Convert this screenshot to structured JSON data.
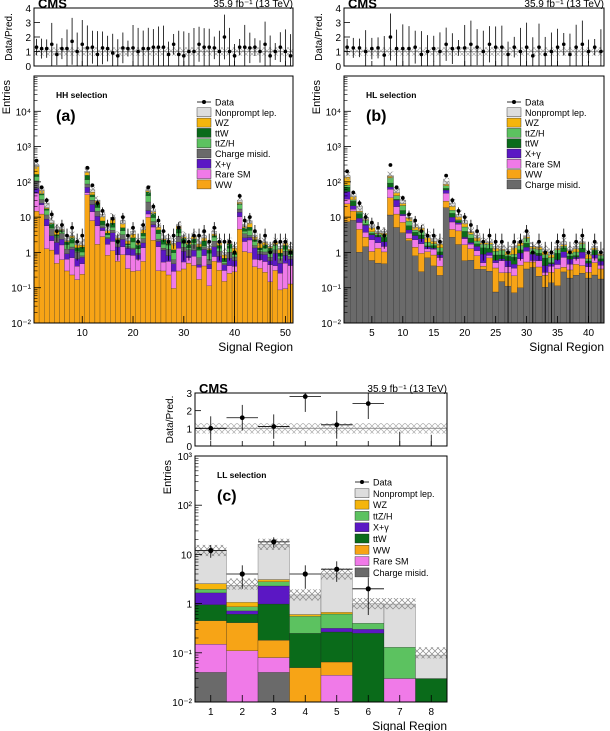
{
  "chart_data": [
    {
      "type": "bar",
      "stacked": true,
      "log_y": true,
      "panel_label": "(a)",
      "selection": "HH selection",
      "experiment": "CMS",
      "lumi_text": "35.9 fb⁻¹ (13 TeV)",
      "xlabel": "Signal Region",
      "ylabel": "Entries",
      "ratio_ylabel": "Data/Pred.",
      "ylim": [
        0.01,
        100000
      ],
      "ratio_ylim": [
        0,
        4
      ],
      "xticks": [
        "10",
        "20",
        "30",
        "40",
        "50"
      ],
      "yticks": [
        "10⁻²",
        "10⁻¹",
        "1",
        "10",
        "10²",
        "10³",
        "10⁴"
      ],
      "ratio_yticks": [
        "0",
        "1",
        "2",
        "3",
        "4"
      ],
      "legend": [
        "Data",
        "Nonprompt lep.",
        "WZ",
        "ttW",
        "ttZ/H",
        "Charge misid.",
        "X+γ",
        "Rare SM",
        "WW"
      ],
      "colors": {
        "Nonprompt lep.": "#dddddd",
        "WZ": "#f5b50c",
        "ttW": "#0a6b1a",
        "ttZ/H": "#5cc260",
        "Charge misid.": "#6a6a6a",
        "X+γ": "#5b17c4",
        "Rare SM": "#f07ae8",
        "WW": "#f7a416"
      },
      "x": [
        1,
        2,
        3,
        4,
        5,
        6,
        7,
        8,
        9,
        10,
        11,
        12,
        13,
        14,
        15,
        16,
        17,
        18,
        19,
        20,
        21,
        22,
        23,
        24,
        25,
        26,
        27,
        28,
        29,
        30,
        31,
        32,
        33,
        34,
        35,
        36,
        37,
        38,
        39,
        40,
        41,
        42,
        43,
        44,
        45,
        46,
        47,
        48,
        49,
        50,
        51
      ],
      "total": [
        300,
        60,
        25,
        8,
        5,
        5,
        2.5,
        3,
        2,
        2,
        200,
        60,
        30,
        12,
        5,
        10,
        3,
        8,
        2.5,
        4,
        2,
        5,
        60,
        15,
        6,
        3,
        2.5,
        2,
        6,
        3,
        2,
        3,
        2,
        3,
        1.5,
        4,
        2,
        1,
        2,
        1.5,
        30,
        6,
        8,
        3,
        2,
        2,
        1.5,
        2,
        1.5,
        2,
        1.5
      ],
      "data": [
        400,
        70,
        30,
        12,
        4,
        6,
        3,
        5,
        2,
        3,
        250,
        80,
        25,
        15,
        6,
        9,
        2,
        10,
        3,
        5,
        2,
        6,
        70,
        20,
        8,
        4,
        2,
        3,
        5,
        2,
        2,
        3,
        3,
        4,
        2,
        5,
        2,
        2,
        2,
        1,
        40,
        8,
        10,
        4,
        2,
        3,
        1,
        2,
        2,
        2,
        1
      ],
      "ratio": [
        1.3,
        1.2,
        1.2,
        1.5,
        0.8,
        1.2,
        1.2,
        1.7,
        1.0,
        1.5,
        1.25,
        1.3,
        0.8,
        1.25,
        1.2,
        0.9,
        0.7,
        1.25,
        1.2,
        1.25,
        1.0,
        1.2,
        1.2,
        1.3,
        1.3,
        1.3,
        0.8,
        1.5,
        0.8,
        0.7,
        1.0,
        1.0,
        1.5,
        1.3,
        1.3,
        1.25,
        1.0,
        2.0,
        1.0,
        0.7,
        1.3,
        1.3,
        1.25,
        1.3,
        1.0,
        1.5,
        0.7,
        1.0,
        1.3,
        1.0,
        0.7
      ]
    },
    {
      "type": "bar",
      "stacked": true,
      "log_y": true,
      "panel_label": "(b)",
      "selection": "HL selection",
      "experiment": "CMS",
      "lumi_text": "35.9 fb⁻¹ (13 TeV)",
      "xlabel": "Signal Region",
      "ylabel": "Entries",
      "ratio_ylabel": "Data/Pred.",
      "ylim": [
        0.01,
        100000
      ],
      "ratio_ylim": [
        0,
        4
      ],
      "xticks": [
        "5",
        "10",
        "15",
        "20",
        "25",
        "30",
        "35",
        "40"
      ],
      "yticks": [
        "10⁻²",
        "10⁻¹",
        "1",
        "10",
        "10²",
        "10³",
        "10⁴"
      ],
      "ratio_yticks": [
        "0",
        "1",
        "2",
        "3",
        "4"
      ],
      "legend": [
        "Data",
        "Nonprompt lep.",
        "WZ",
        "ttZ/H",
        "ttW",
        "X+γ",
        "Rare SM",
        "WW",
        "Charge misid."
      ],
      "colors": {
        "Nonprompt lep.": "#dddddd",
        "WZ": "#f5b50c",
        "ttZ/H": "#5cc260",
        "ttW": "#0a6b1a",
        "X+γ": "#5b17c4",
        "Rare SM": "#f07ae8",
        "WW": "#f7a416",
        "Charge misid.": "#6a6a6a"
      },
      "x": [
        1,
        2,
        3,
        4,
        5,
        6,
        7,
        8,
        9,
        10,
        11,
        12,
        13,
        14,
        15,
        16,
        17,
        18,
        19,
        20,
        21,
        22,
        23,
        24,
        25,
        26,
        27,
        28,
        29,
        30,
        31,
        32,
        33,
        34,
        35,
        36,
        37,
        38,
        39,
        40,
        41,
        42
      ],
      "total": [
        150,
        40,
        20,
        10,
        6,
        4,
        4,
        150,
        60,
        30,
        10,
        6,
        5,
        3,
        2.5,
        2,
        100,
        25,
        12,
        8,
        4,
        3,
        2,
        2,
        1.5,
        1.5,
        1.2,
        1.5,
        2,
        3,
        1.5,
        1.5,
        1.2,
        1,
        1.5,
        2,
        1.2,
        1.5,
        2,
        1,
        1.5,
        1
      ],
      "data": [
        200,
        50,
        25,
        10,
        7,
        5,
        3,
        300,
        70,
        35,
        12,
        8,
        4,
        3,
        3,
        2,
        150,
        30,
        15,
        10,
        6,
        4,
        2,
        3,
        2,
        2,
        1,
        2,
        2,
        4,
        1,
        2,
        1,
        1,
        2,
        3,
        1,
        2,
        3,
        1,
        2,
        1
      ],
      "ratio": [
        1.3,
        1.25,
        1.25,
        1.0,
        1.2,
        1.25,
        0.75,
        2.0,
        1.2,
        1.2,
        1.2,
        1.3,
        0.8,
        1.0,
        1.2,
        1.0,
        1.5,
        1.2,
        1.25,
        1.25,
        1.5,
        1.3,
        1.0,
        1.5,
        1.3,
        1.3,
        0.8,
        1.3,
        1.0,
        1.3,
        0.7,
        1.3,
        0.8,
        1.0,
        1.3,
        1.5,
        0.8,
        1.3,
        1.5,
        1.0,
        1.3,
        1.0
      ]
    },
    {
      "type": "bar",
      "stacked": true,
      "log_y": true,
      "panel_label": "(c)",
      "selection": "LL selection",
      "experiment": "CMS",
      "lumi_text": "35.9 fb⁻¹ (13 TeV)",
      "xlabel": "Signal Region",
      "ylabel": "Entries",
      "ratio_ylabel": "Data/Pred.",
      "ylim": [
        0.01,
        1000
      ],
      "ratio_ylim": [
        0,
        3
      ],
      "xticks": [
        "1",
        "2",
        "3",
        "4",
        "5",
        "6",
        "7",
        "8"
      ],
      "yticks": [
        "10⁻²",
        "10⁻¹",
        "1",
        "10",
        "10²",
        "10³"
      ],
      "ratio_yticks": [
        "0",
        "1",
        "2",
        "3"
      ],
      "legend": [
        "Data",
        "Nonprompt lep.",
        "WZ",
        "ttZ/H",
        "X+γ",
        "ttW",
        "WW",
        "Rare SM",
        "Charge misid."
      ],
      "colors": {
        "Nonprompt lep.": "#dddddd",
        "WZ": "#f5b50c",
        "ttZ/H": "#5cc260",
        "X+γ": "#5b17c4",
        "ttW": "#0a6b1a",
        "WW": "#f7a416",
        "Rare SM": "#f07ae8",
        "Charge misid.": "#6a6a6a"
      },
      "x": [
        1,
        2,
        3,
        4,
        5,
        6,
        7,
        8
      ],
      "stack_order": [
        "Charge misid.",
        "Rare SM",
        "WW",
        "ttW",
        "X+γ",
        "ttZ/H",
        "WZ",
        "Nonprompt lep."
      ],
      "series": [
        {
          "name": "Charge misid.",
          "values": [
            0.04,
            0,
            0.04,
            0,
            0,
            0,
            0,
            0
          ]
        },
        {
          "name": "Rare SM",
          "values": [
            0.11,
            0.11,
            0.04,
            0.01,
            0.035,
            0,
            0.03,
            0
          ]
        },
        {
          "name": "WW",
          "values": [
            0.3,
            0.3,
            0.1,
            0.04,
            0.03,
            0,
            0,
            0
          ]
        },
        {
          "name": "ttW",
          "values": [
            0.5,
            0.2,
            0.8,
            0.2,
            0.2,
            0.25,
            0,
            0.03
          ]
        },
        {
          "name": "X+γ",
          "values": [
            0.7,
            0.1,
            1.3,
            0,
            0.05,
            0.05,
            0,
            0
          ]
        },
        {
          "name": "ttZ/H",
          "values": [
            0.3,
            0.15,
            0.5,
            0.3,
            0.3,
            0.1,
            0.1,
            0
          ]
        },
        {
          "name": "WZ",
          "values": [
            0.6,
            0.2,
            0.3,
            0.05,
            0.05,
            0,
            0,
            0
          ]
        },
        {
          "name": "Nonprompt lep.",
          "values": [
            9.5,
            1.3,
            13,
            0.9,
            3.4,
            0.6,
            0.85,
            0.06
          ]
        }
      ],
      "total": [
        12,
        2.5,
        16,
        1.5,
        4,
        1,
        1,
        0.1
      ],
      "data": [
        12,
        4,
        18,
        4,
        5,
        2,
        0,
        0
      ],
      "ratio": [
        1.0,
        1.6,
        1.1,
        2.8,
        1.2,
        2.4,
        0,
        0
      ]
    }
  ]
}
